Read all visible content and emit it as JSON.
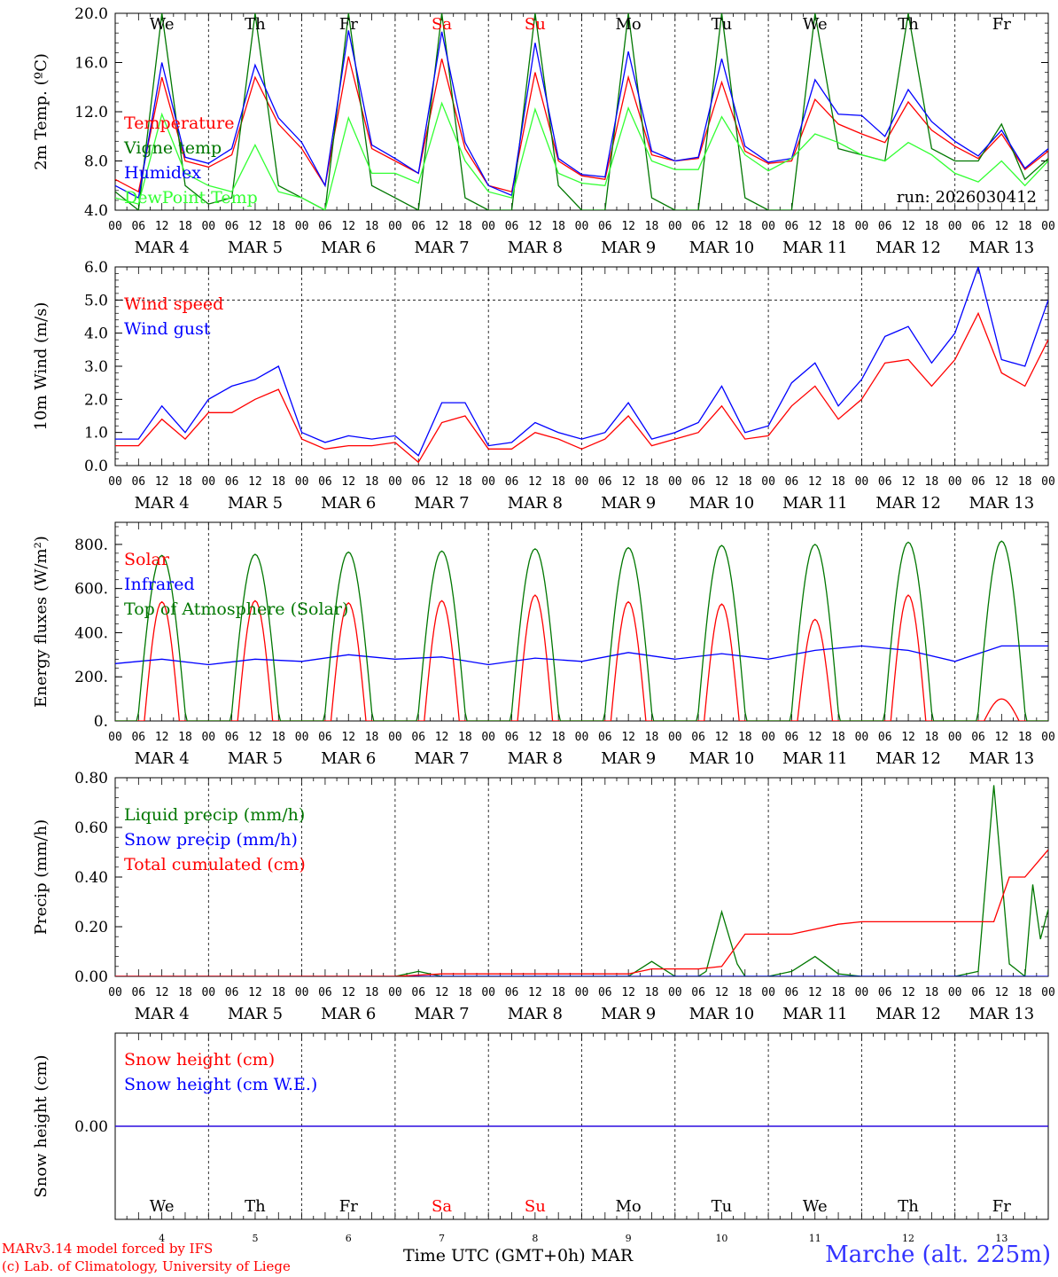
{
  "run_label": "run: 2026030412",
  "footer": {
    "model": "MARv3.14 model forced by IFS",
    "lab": "(c) Lab. of Climatology, University of Liege",
    "xlabel": "Time UTC (GMT+0h) MAR",
    "station": "Marche (alt. 225m)"
  },
  "days": {
    "names": [
      "We",
      "Th",
      "Fr",
      "Sa",
      "Su",
      "Mo",
      "Tu",
      "We",
      "Th",
      "Fr"
    ],
    "numbers": [
      "4",
      "5",
      "6",
      "7",
      "8",
      "9",
      "10",
      "11",
      "12",
      "13"
    ],
    "date_labels": [
      "MAR  4",
      "MAR  5",
      "MAR  6",
      "MAR  7",
      "MAR  8",
      "MAR  9",
      "MAR 10",
      "MAR 11",
      "MAR 12",
      "MAR 13"
    ],
    "weekend_color": "#ff0000",
    "weekday_color": "#000000",
    "weekend_index": [
      3,
      4
    ],
    "hour_ticks": [
      "00",
      "06",
      "12",
      "18"
    ],
    "end_tick": "00"
  },
  "chart_data": [
    {
      "type": "line",
      "ylabel": "2m Temp. (ºC)",
      "ylim": [
        4.0,
        20.0
      ],
      "yticks": [
        "4.0",
        "8.0",
        "12.0",
        "16.0",
        "20.0"
      ],
      "x_unit": "hours since MAR 4 00 UTC",
      "series": [
        {
          "name": "Temperature",
          "color": "#ff0000",
          "x": [
            0,
            6,
            12,
            18,
            24,
            30,
            36,
            42,
            48,
            54,
            60,
            66,
            72,
            78,
            84,
            90,
            96,
            102,
            108,
            114,
            120,
            126,
            132,
            138,
            144,
            150,
            156,
            162,
            168,
            174,
            180,
            186,
            192,
            198,
            204,
            210,
            216,
            222,
            228,
            234,
            240
          ],
          "values": [
            6.5,
            5.5,
            14.8,
            8.0,
            7.5,
            8.5,
            14.8,
            11.0,
            9.0,
            6.0,
            16.5,
            9.0,
            8.0,
            7.0,
            16.3,
            9.0,
            6.0,
            5.5,
            15.2,
            8.0,
            6.8,
            6.5,
            14.8,
            8.5,
            8.0,
            8.2,
            14.4,
            8.8,
            7.8,
            8.0,
            13.0,
            11.0,
            10.2,
            9.5,
            12.8,
            10.5,
            9.2,
            8.2,
            10.2,
            7.3,
            8.8
          ]
        },
        {
          "name": "Vigne temp",
          "color": "#007700",
          "x": [
            0,
            6,
            12,
            18,
            24,
            30,
            36,
            42,
            48,
            54,
            60,
            66,
            72,
            78,
            84,
            90,
            96,
            102,
            108,
            114,
            120,
            126,
            132,
            138,
            144,
            150,
            156,
            162,
            168,
            174,
            180,
            186,
            192,
            198,
            204,
            210,
            216,
            222,
            228,
            234,
            240
          ],
          "values": [
            5.5,
            4.0,
            20.0,
            6.0,
            4.5,
            5.0,
            20.0,
            6.0,
            5.0,
            4.0,
            20.0,
            6.0,
            5.0,
            4.0,
            20.0,
            5.0,
            4.0,
            4.0,
            20.0,
            6.0,
            4.0,
            4.0,
            20.0,
            5.0,
            4.0,
            4.0,
            20.0,
            5.0,
            4.0,
            4.0,
            20.0,
            9.0,
            8.5,
            8.0,
            20.0,
            9.0,
            8.0,
            8.0,
            11.0,
            6.5,
            8.2
          ]
        },
        {
          "name": "Humidex",
          "color": "#0000ff",
          "x": [
            0,
            6,
            12,
            18,
            24,
            30,
            36,
            42,
            48,
            54,
            60,
            66,
            72,
            78,
            84,
            90,
            96,
            102,
            108,
            114,
            120,
            126,
            132,
            138,
            144,
            150,
            156,
            162,
            168,
            174,
            180,
            186,
            192,
            198,
            204,
            210,
            216,
            222,
            228,
            234,
            240
          ],
          "values": [
            6.0,
            5.0,
            16.0,
            8.3,
            7.8,
            9.0,
            15.8,
            11.5,
            9.5,
            6.0,
            18.6,
            9.3,
            8.2,
            7.0,
            18.5,
            9.5,
            6.0,
            5.2,
            17.6,
            8.2,
            6.9,
            6.7,
            16.9,
            8.8,
            8.0,
            8.3,
            16.3,
            9.2,
            7.9,
            8.2,
            14.6,
            11.8,
            11.7,
            10.0,
            13.8,
            11.2,
            9.6,
            8.4,
            10.5,
            7.4,
            9.0
          ]
        },
        {
          "name": "DewPoint Temp",
          "color": "#33ff33",
          "x": [
            0,
            6,
            12,
            18,
            24,
            30,
            36,
            42,
            48,
            54,
            60,
            66,
            72,
            78,
            84,
            90,
            96,
            102,
            108,
            114,
            120,
            126,
            132,
            138,
            144,
            150,
            156,
            162,
            168,
            174,
            180,
            186,
            192,
            198,
            204,
            210,
            216,
            222,
            228,
            234,
            240
          ],
          "values": [
            5.0,
            4.5,
            11.8,
            7.0,
            6.0,
            5.5,
            9.3,
            5.5,
            5.0,
            4.0,
            11.5,
            7.0,
            7.0,
            6.2,
            12.7,
            8.0,
            5.5,
            5.0,
            12.2,
            7.0,
            6.2,
            6.0,
            12.3,
            8.0,
            7.3,
            7.3,
            11.6,
            8.5,
            7.2,
            8.2,
            10.2,
            9.5,
            8.5,
            8.0,
            9.5,
            8.5,
            7.0,
            6.3,
            8.0,
            6.0,
            8.0
          ]
        }
      ]
    },
    {
      "type": "line",
      "ylabel": "10m Wind (m/s)",
      "ylim": [
        0.0,
        6.0
      ],
      "yticks": [
        "0.0",
        "1.0",
        "2.0",
        "3.0",
        "4.0",
        "5.0",
        "6.0"
      ],
      "ref_line": 5.0,
      "series": [
        {
          "name": "Wind speed",
          "color": "#ff0000",
          "x": [
            0,
            6,
            12,
            18,
            24,
            30,
            36,
            42,
            48,
            54,
            60,
            66,
            72,
            78,
            84,
            90,
            96,
            102,
            108,
            114,
            120,
            126,
            132,
            138,
            144,
            150,
            156,
            162,
            168,
            174,
            180,
            186,
            192,
            198,
            204,
            210,
            216,
            222,
            228,
            234,
            240
          ],
          "values": [
            0.6,
            0.6,
            1.4,
            0.8,
            1.6,
            1.6,
            2.0,
            2.3,
            0.8,
            0.5,
            0.6,
            0.6,
            0.7,
            0.1,
            1.3,
            1.5,
            0.5,
            0.5,
            1.0,
            0.8,
            0.5,
            0.8,
            1.5,
            0.6,
            0.8,
            1.0,
            1.8,
            0.8,
            0.9,
            1.8,
            2.4,
            1.4,
            2.0,
            3.1,
            3.2,
            2.4,
            3.2,
            4.6,
            2.8,
            2.4,
            3.8
          ]
        },
        {
          "name": "Wind gust",
          "color": "#0000ff",
          "x": [
            0,
            6,
            12,
            18,
            24,
            30,
            36,
            42,
            48,
            54,
            60,
            66,
            72,
            78,
            84,
            90,
            96,
            102,
            108,
            114,
            120,
            126,
            132,
            138,
            144,
            150,
            156,
            162,
            168,
            174,
            180,
            186,
            192,
            198,
            204,
            210,
            216,
            222,
            228,
            234,
            240
          ],
          "values": [
            0.8,
            0.8,
            1.8,
            1.0,
            2.0,
            2.4,
            2.6,
            3.0,
            1.0,
            0.7,
            0.9,
            0.8,
            0.9,
            0.3,
            1.9,
            1.9,
            0.6,
            0.7,
            1.3,
            1.0,
            0.8,
            1.0,
            1.9,
            0.8,
            1.0,
            1.3,
            2.4,
            1.0,
            1.2,
            2.5,
            3.1,
            1.8,
            2.6,
            3.9,
            4.2,
            3.1,
            4.0,
            6.0,
            3.2,
            3.0,
            5.0
          ]
        }
      ]
    },
    {
      "type": "line",
      "ylabel": "Energy fluxes (W/m²)",
      "ylim": [
        0,
        900
      ],
      "yticks": [
        "0.",
        "200.",
        "400.",
        "600.",
        "800."
      ],
      "series": [
        {
          "name": "Solar",
          "color": "#ff0000",
          "peaks": [
            540,
            545,
            535,
            545,
            570,
            540,
            530,
            460,
            570,
            100
          ]
        },
        {
          "name": "Infrared",
          "color": "#0000ff",
          "x": [
            0,
            12,
            24,
            36,
            48,
            60,
            72,
            84,
            96,
            108,
            120,
            132,
            144,
            156,
            168,
            180,
            192,
            204,
            216,
            228,
            240
          ],
          "values": [
            260,
            280,
            255,
            280,
            270,
            300,
            280,
            290,
            255,
            285,
            270,
            310,
            280,
            305,
            280,
            320,
            340,
            320,
            270,
            340,
            340
          ]
        },
        {
          "name": "Top of Atmosphere (Solar)",
          "color": "#007700",
          "peaks": [
            750,
            755,
            765,
            770,
            780,
            785,
            795,
            800,
            810,
            815
          ]
        }
      ]
    },
    {
      "type": "line",
      "ylabel": "Precip (mm/h)",
      "ylim": [
        0.0,
        0.8
      ],
      "yticks": [
        "0.00",
        "0.20",
        "0.40",
        "0.60",
        "0.80"
      ],
      "series": [
        {
          "name": "Liquid precip (mm/h)",
          "color": "#007700",
          "x": [
            0,
            72,
            78,
            84,
            132,
            138,
            144,
            150,
            152,
            156,
            160,
            162,
            168,
            174,
            180,
            186,
            192,
            216,
            222,
            226,
            230,
            234,
            236,
            238,
            240
          ],
          "values": [
            0,
            0,
            0.02,
            0,
            0,
            0.06,
            0,
            0,
            0.02,
            0.26,
            0.05,
            0,
            0,
            0.02,
            0.08,
            0.01,
            0,
            0,
            0.02,
            0.77,
            0.05,
            0,
            0.37,
            0.15,
            0.27
          ]
        },
        {
          "name": "Snow precip (mm/h)",
          "color": "#0000ff",
          "x": [
            0,
            240
          ],
          "values": [
            0,
            0
          ]
        },
        {
          "name": "Total cumulated (cm)",
          "color": "#ff0000",
          "x": [
            0,
            72,
            84,
            132,
            138,
            150,
            156,
            162,
            174,
            186,
            192,
            226,
            230,
            234,
            240
          ],
          "values": [
            0,
            0,
            0.01,
            0.01,
            0.03,
            0.03,
            0.04,
            0.17,
            0.17,
            0.21,
            0.22,
            0.22,
            0.4,
            0.4,
            0.51
          ]
        }
      ]
    },
    {
      "type": "line",
      "ylabel": "Snow height (cm)",
      "ylim": [
        -1.0,
        1.0
      ],
      "yticks": [
        "0.00"
      ],
      "series": [
        {
          "name": "Snow height (cm)",
          "color": "#ff0000",
          "x": [
            0,
            240
          ],
          "values": [
            0,
            0
          ]
        },
        {
          "name": "Snow height (cm W.E.)",
          "color": "#0000ff",
          "x": [
            0,
            240
          ],
          "values": [
            0,
            0
          ]
        }
      ]
    }
  ]
}
